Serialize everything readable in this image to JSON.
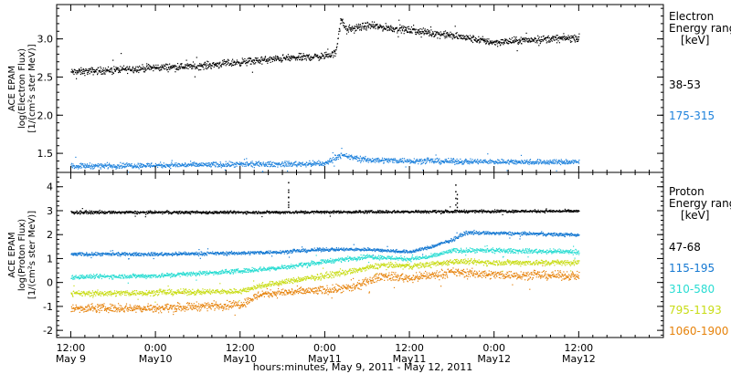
{
  "chart_data": {
    "type": "scatter",
    "x_axis": {
      "label": "hours:minutes, May  9, 2011 - May 12, 2011",
      "range_hours": [
        -2,
        84
      ],
      "ticks": [
        {
          "hour": 0,
          "time": "12:00",
          "date": "May 9"
        },
        {
          "hour": 12,
          "time": "0:00",
          "date": "May10"
        },
        {
          "hour": 24,
          "time": "12:00",
          "date": "May10"
        },
        {
          "hour": 36,
          "time": "0:00",
          "date": "May11"
        },
        {
          "hour": 48,
          "time": "12:00",
          "date": "May11"
        },
        {
          "hour": 60,
          "time": "0:00",
          "date": "May12"
        },
        {
          "hour": 72,
          "time": "12:00",
          "date": "May12"
        }
      ]
    },
    "panels": [
      {
        "id": "electron",
        "ylabel_lines": [
          "ACE EPAM",
          "log(Electron Flux)",
          "[1/(cm²s ster MeV)]"
        ],
        "ylim": [
          1.25,
          3.45
        ],
        "yticks": [
          "1.5",
          "2.0",
          "2.5",
          "3.0"
        ],
        "ytick_values": [
          1.5,
          2.0,
          2.5,
          3.0
        ],
        "legend_title_lines": [
          "Electron",
          "Energy ranges",
          "[keV]"
        ],
        "series": [
          {
            "name": "38-53",
            "color": "#000000",
            "profile": [
              [
                0,
                2.57
              ],
              [
                6,
                2.6
              ],
              [
                12,
                2.63
              ],
              [
                18,
                2.65
              ],
              [
                24,
                2.7
              ],
              [
                30,
                2.75
              ],
              [
                36,
                2.78
              ],
              [
                37.5,
                2.82
              ],
              [
                38.2,
                3.27
              ],
              [
                39,
                3.12
              ],
              [
                42,
                3.18
              ],
              [
                48,
                3.12
              ],
              [
                54,
                3.05
              ],
              [
                60,
                2.96
              ],
              [
                66,
                3.0
              ],
              [
                72,
                3.02
              ]
            ],
            "noise": 0.04
          },
          {
            "name": "175-315",
            "color": "#1e82dc",
            "profile": [
              [
                0,
                1.34
              ],
              [
                12,
                1.35
              ],
              [
                24,
                1.36
              ],
              [
                36,
                1.37
              ],
              [
                38,
                1.48
              ],
              [
                42,
                1.42
              ],
              [
                54,
                1.4
              ],
              [
                72,
                1.39
              ]
            ],
            "noise": 0.03
          }
        ]
      },
      {
        "id": "proton",
        "ylabel_lines": [
          "ACE EPAM",
          "log(Proton Flux)",
          "[1/(cm²s ster MeV)]"
        ],
        "ylim": [
          -2.3,
          4.6
        ],
        "yticks": [
          "-2",
          "-1",
          "0",
          "1",
          "2",
          "3",
          "4"
        ],
        "ytick_values": [
          -2,
          -1,
          0,
          1,
          2,
          3,
          4
        ],
        "legend_title_lines": [
          "Proton",
          "Energy ranges",
          "[keV]"
        ],
        "series": [
          {
            "name": "47-68",
            "color": "#000000",
            "profile": [
              [
                0,
                2.95
              ],
              [
                24,
                2.95
              ],
              [
                48,
                2.98
              ],
              [
                60,
                3.0
              ],
              [
                72,
                3.0
              ]
            ],
            "noise": 0.05,
            "spikes": [
              [
                30.8,
                4.2
              ],
              [
                30.8,
                3.8
              ],
              [
                54.5,
                4.1
              ],
              [
                54.7,
                3.7
              ]
            ]
          },
          {
            "name": "115-195",
            "color": "#1478d2",
            "profile": [
              [
                0,
                1.2
              ],
              [
                12,
                1.2
              ],
              [
                24,
                1.25
              ],
              [
                30,
                1.3
              ],
              [
                36,
                1.4
              ],
              [
                42,
                1.4
              ],
              [
                48,
                1.3
              ],
              [
                51,
                1.5
              ],
              [
                54,
                1.8
              ],
              [
                56,
                2.1
              ],
              [
                66,
                2.05
              ],
              [
                72,
                2.0
              ]
            ],
            "noise": 0.06
          },
          {
            "name": "310-580",
            "color": "#28dcd2",
            "profile": [
              [
                0,
                0.25
              ],
              [
                12,
                0.3
              ],
              [
                24,
                0.5
              ],
              [
                30,
                0.65
              ],
              [
                36,
                0.9
              ],
              [
                42,
                1.1
              ],
              [
                48,
                1.0
              ],
              [
                51,
                1.1
              ],
              [
                54,
                1.35
              ],
              [
                60,
                1.35
              ],
              [
                72,
                1.3
              ]
            ],
            "noise": 0.08
          },
          {
            "name": "795-1193",
            "color": "#c8dc14",
            "profile": [
              [
                0,
                -0.45
              ],
              [
                12,
                -0.4
              ],
              [
                24,
                -0.35
              ],
              [
                27,
                -0.1
              ],
              [
                36,
                0.3
              ],
              [
                40,
                0.5
              ],
              [
                44,
                0.75
              ],
              [
                48,
                0.7
              ],
              [
                52,
                0.8
              ],
              [
                54,
                0.9
              ],
              [
                60,
                0.85
              ],
              [
                72,
                0.85
              ]
            ],
            "noise": 0.1
          },
          {
            "name": "1060-1900",
            "color": "#e6820a",
            "profile": [
              [
                0,
                -1.05
              ],
              [
                12,
                -1.05
              ],
              [
                24,
                -0.9
              ],
              [
                27,
                -0.45
              ],
              [
                36,
                -0.3
              ],
              [
                40,
                -0.2
              ],
              [
                44,
                0.3
              ],
              [
                48,
                0.2
              ],
              [
                52,
                0.35
              ],
              [
                54,
                0.45
              ],
              [
                60,
                0.35
              ],
              [
                72,
                0.3
              ]
            ],
            "noise": 0.15
          }
        ]
      }
    ]
  }
}
